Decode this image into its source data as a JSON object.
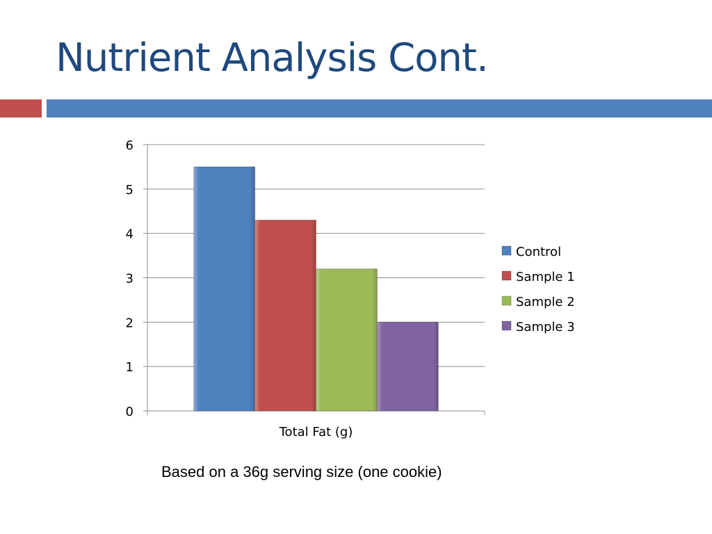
{
  "slide": {
    "title": "Nutrient Analysis Cont.",
    "footnote": "Based on a 36g serving size (one cookie)",
    "accent_colors": {
      "title_text": "#1f497d",
      "bar_left": "#c0504d",
      "bar_right": "#4f81bd"
    }
  },
  "chart_data": {
    "type": "bar",
    "title": "",
    "xlabel": "",
    "ylabel": "",
    "categories": [
      "Total Fat (g)"
    ],
    "series": [
      {
        "name": "Control",
        "values": [
          5.5
        ],
        "color": "#4f81bd"
      },
      {
        "name": "Sample 1",
        "values": [
          4.3
        ],
        "color": "#c0504d"
      },
      {
        "name": "Sample 2",
        "values": [
          3.2
        ],
        "color": "#9bbb59"
      },
      {
        "name": "Sample 3",
        "values": [
          2.0
        ],
        "color": "#8064a2"
      }
    ],
    "ylim": [
      0,
      6
    ],
    "yticks": [
      0,
      1,
      2,
      3,
      4,
      5,
      6
    ],
    "grid": true,
    "legend_position": "right"
  }
}
